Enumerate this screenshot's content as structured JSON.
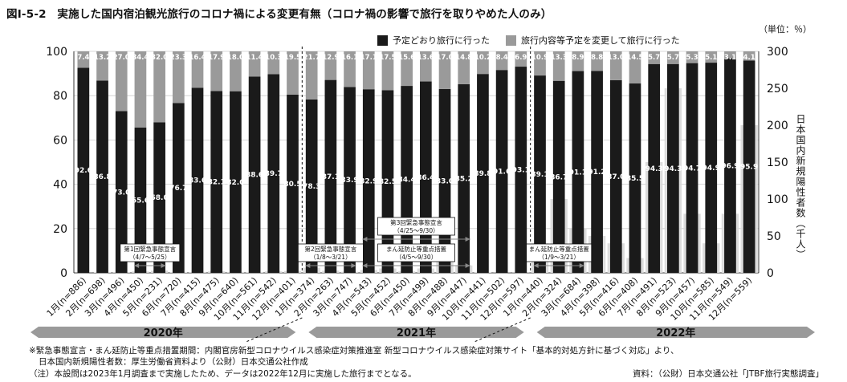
{
  "title": "図Ⅰ-5-2　実施した国内宿泊観光旅行のコロナ禍による変更有無（コロナ禍の影響で旅行を取りやめた人のみ）",
  "unit": "（単位：％）",
  "right_axis_title": "日本国内新規陽性者数（千人）",
  "notes": [
    "※緊急事態宣言・まん延防止等重点措置期間：内閣官房新型コロナウイルス感染症対策推進室 新型コロナウイルス感染症対策サイト「基本的対処方針に基づく対応」より、",
    "日本国内新規陽性者数：厚生労働省資料より（公財）日本交通公社作成",
    "（注）本設問は2023年1月調査まで実施したため、データは2022年12月に実施した旅行までとなる。"
  ],
  "source": "資料：（公財）日本交通公社「JTBF旅行実態調査」",
  "colors": {
    "dark": "#1a1a1a",
    "light": "#9a9a9a",
    "grid": "#cccccc",
    "gray_band": "#d8d8d8"
  },
  "chart_data": {
    "type": "bar",
    "stacked": true,
    "ylim": [
      0,
      100
    ],
    "y2lim": [
      0,
      300
    ],
    "yticks": [
      0,
      20,
      40,
      60,
      80,
      100
    ],
    "y2ticks": [
      0,
      50,
      100,
      150,
      200,
      250,
      300
    ],
    "grid": true,
    "legend_position": "top",
    "categories": [
      "1月(n=886)",
      "2月(n=698)",
      "3月(n=496)",
      "4月(n=450)",
      "5月(n=231)",
      "6月(n=720)",
      "7月(n=415)",
      "8月(n=475)",
      "9月(n=640)",
      "10月(n=561)",
      "11月(n=542)",
      "12月(n=401)",
      "1月(n=374)",
      "2月(n=263)",
      "3月(n=747)",
      "4月(n=543)",
      "5月(n=452)",
      "6月(n=450)",
      "7月(n=499)",
      "8月(n=488)",
      "9月(n=447)",
      "10月(n=441)",
      "11月(n=502)",
      "12月(n=597)",
      "1月(n=440)",
      "2月(n=324)",
      "3月(n=684)",
      "4月(n=398)",
      "5月(n=416)",
      "6月(n=408)",
      "7月(n=491)",
      "8月(n=523)",
      "9月(n=457)",
      "10月(n=585)",
      "11月(n=549)",
      "12月(n=559)"
    ],
    "series": [
      {
        "name": "予定どおり旅行に行った",
        "color": "#1a1a1a",
        "values": [
          92.6,
          86.8,
          73.0,
          65.6,
          68.0,
          76.7,
          83.6,
          82.1,
          82.0,
          88.6,
          89.7,
          80.5,
          78.3,
          87.1,
          83.9,
          82.9,
          82.5,
          84.4,
          86.4,
          83.0,
          85.2,
          89.8,
          91.6,
          93.1,
          89.1,
          86.7,
          91.1,
          91.2,
          87.0,
          85.5,
          94.3,
          94.3,
          94.7,
          94.9,
          96.9,
          95.9
        ],
        "labels": [
          "92.6",
          "86.8",
          "73.0",
          "65.6",
          "68.0",
          "76.7",
          "83.6",
          "82.1",
          "82.0",
          "88.6",
          "89.7",
          "80.5",
          "78.3",
          "87.1",
          "83.9",
          "82.9",
          "82.5",
          "84.4",
          "86.4",
          "83.0",
          "85.2",
          "89.8",
          "91.6",
          "93.1",
          "89.1",
          "86.7",
          "91.1",
          "91.2",
          "87.0",
          "85.5",
          "94.3",
          "94.3",
          "94.7",
          "94.9",
          "96.9",
          "95.9"
        ]
      },
      {
        "name": "旅行内容等予定を変更して旅行に行った",
        "color": "#9a9a9a",
        "values": [
          7.4,
          13.2,
          27.0,
          34.4,
          32.0,
          23.3,
          16.4,
          17.9,
          18.0,
          11.4,
          10.3,
          19.5,
          21.7,
          12.9,
          16.1,
          17.1,
          17.5,
          15.6,
          13.6,
          17.0,
          14.8,
          10.2,
          8.4,
          6.9,
          10.9,
          13.3,
          8.9,
          8.8,
          13.0,
          14.5,
          5.7,
          5.7,
          5.3,
          5.1,
          3.1,
          4.1
        ],
        "labels": [
          "7.4",
          "13.2",
          "27.0",
          "34.4",
          "32.0",
          "23.3",
          "16.4",
          "17.9",
          "18.0",
          "11.4",
          "10.3",
          "19.5",
          "21.7",
          "12.9",
          "16.1",
          "17.1",
          "17.5",
          "15.6",
          "13.6",
          "17.0",
          "14.8",
          "10.2",
          "8.4",
          "6.9",
          "10.9",
          "13.3",
          "8.9",
          "8.8",
          "13.0",
          "14.5",
          "5.7",
          "5.7",
          "5.3",
          "5.1",
          "3.1",
          "4.1"
        ]
      }
    ],
    "new_cases_thousands": [
      0.1,
      0.5,
      1.0,
      2.0,
      3.0,
      0.5,
      1.0,
      2.0,
      1.0,
      0.8,
      2.0,
      2.5,
      7.0,
      3.0,
      1.5,
      4.0,
      6.0,
      2.0,
      6.0,
      25.0,
      10.0,
      0.5,
      0.2,
      0.3,
      40.0,
      100.0,
      60.0,
      50.0,
      40.0,
      20.0,
      150.0,
      250.0,
      80.0,
      40.0,
      80.0,
      200.0
    ],
    "years": [
      "2020年",
      "2021年",
      "2022年"
    ],
    "dividers_after_index": [
      11,
      23
    ],
    "annotations": [
      {
        "text": "第1回緊急事態宣言",
        "sub": "（4/7～5/25）",
        "start_index": 3,
        "end_index": 4,
        "band": "low"
      },
      {
        "text": "第2回緊急事態宣言",
        "sub": "（1/8～3/21）",
        "start_index": 12,
        "end_index": 14,
        "band": "low"
      },
      {
        "text": "第3回緊急事態宣言",
        "sub": "（4/25～9/30）",
        "start_index": 15,
        "end_index": 20,
        "band": "high"
      },
      {
        "text": "まん延防止等重点措置",
        "sub": "（4/5～9/30）",
        "start_index": 15,
        "end_index": 20,
        "band": "low"
      },
      {
        "text": "まん延防止等重点措置",
        "sub": "（1/9～3/21）",
        "start_index": 24,
        "end_index": 26,
        "band": "low"
      }
    ]
  }
}
